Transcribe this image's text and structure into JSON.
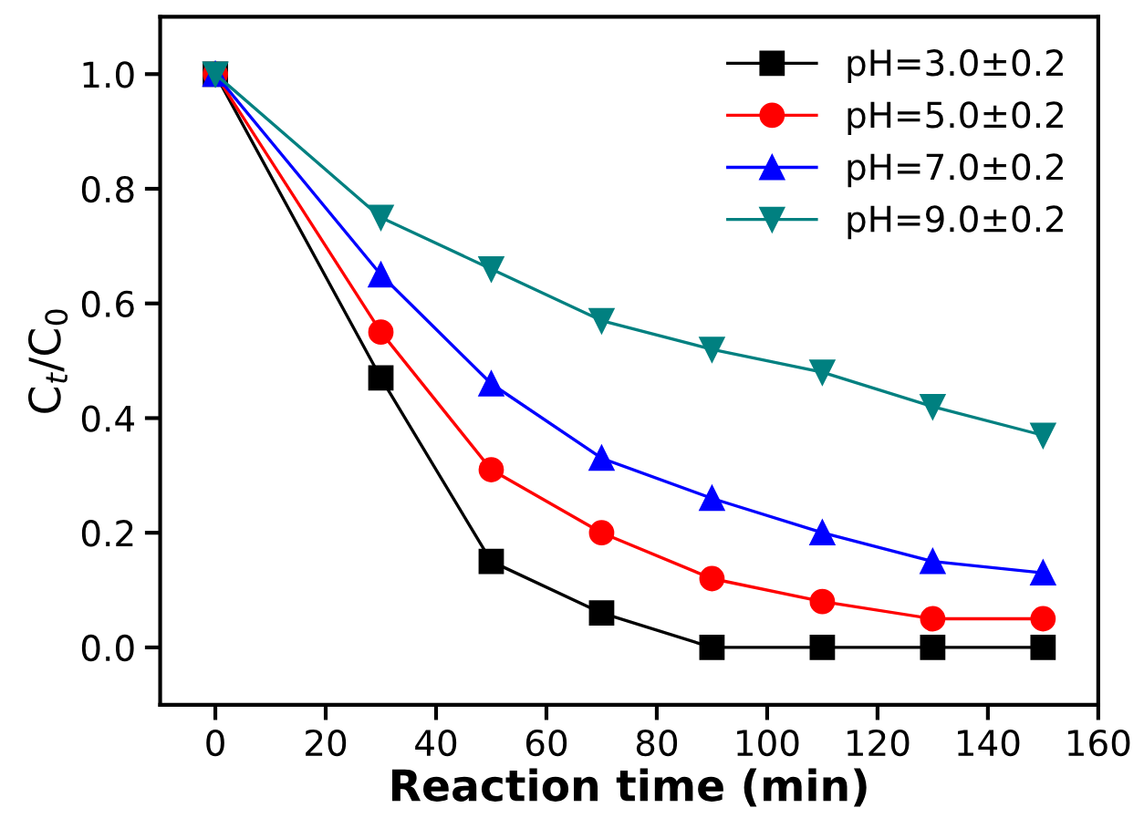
{
  "chart_data": {
    "type": "line",
    "xlabel": "Reaction time (min)",
    "ylabel": "C$_{t}$/C$_{0}$",
    "x": [
      0,
      30,
      50,
      70,
      90,
      110,
      130,
      150
    ],
    "series": [
      {
        "name": "pH=3.0±0.2",
        "color": "#000000",
        "marker": "square",
        "values": [
          1.0,
          0.47,
          0.15,
          0.06,
          0.0,
          0.0,
          0.0,
          0.0
        ]
      },
      {
        "name": "pH=5.0±0.2",
        "color": "#ff0000",
        "marker": "circle",
        "values": [
          1.0,
          0.55,
          0.31,
          0.2,
          0.12,
          0.08,
          0.05,
          0.05
        ]
      },
      {
        "name": "pH=7.0±0.2",
        "color": "#0000ff",
        "marker": "triangle",
        "values": [
          1.0,
          0.65,
          0.46,
          0.33,
          0.26,
          0.2,
          0.15,
          0.13
        ]
      },
      {
        "name": "pH=9.0±0.2",
        "color": "#008080",
        "marker": "triangle-down",
        "values": [
          1.0,
          0.75,
          0.66,
          0.57,
          0.52,
          0.48,
          0.42,
          0.37
        ]
      }
    ],
    "xlim": [
      -10,
      160
    ],
    "xticks": [
      0,
      20,
      40,
      60,
      80,
      100,
      120,
      140,
      160
    ],
    "ylim": [
      -0.1,
      1.1
    ],
    "yticks": [
      {
        "value": 0.0,
        "label": "0.0"
      },
      {
        "value": 0.2,
        "label": "0.2"
      },
      {
        "value": 0.4,
        "label": "0.4"
      },
      {
        "value": 0.6,
        "label": "0.6"
      },
      {
        "value": 0.8,
        "label": "0.8"
      },
      {
        "value": 1.0,
        "label": "1.0"
      }
    ],
    "grid": false,
    "legend": "top right",
    "line_style": "solid"
  }
}
